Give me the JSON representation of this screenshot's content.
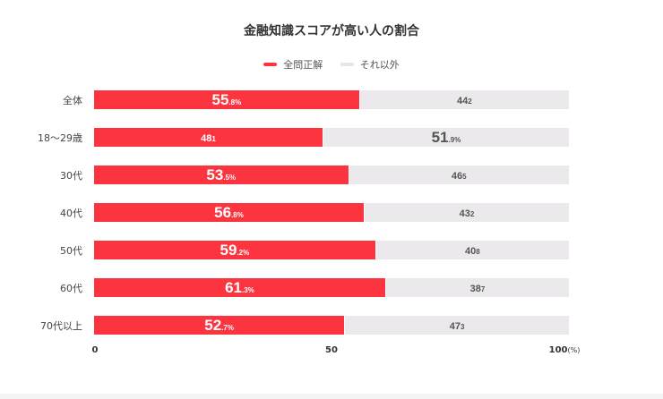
{
  "chart_data": {
    "type": "bar",
    "stacked": true,
    "orientation": "horizontal",
    "title": "金融知識スコアが高い人の割合",
    "legend": {
      "position": "top",
      "entries": [
        "全問正解",
        "それ以外"
      ]
    },
    "categories": [
      "全体",
      "18〜29歳",
      "30代",
      "40代",
      "50代",
      "60代",
      "70代以上"
    ],
    "series": [
      {
        "name": "全問正解",
        "color": "#fc3440",
        "values": [
          55.8,
          48.1,
          53.5,
          56.8,
          59.2,
          61.3,
          52.7
        ]
      },
      {
        "name": "それ以外",
        "color": "#ebe9eb",
        "values": [
          44.2,
          51.9,
          46.5,
          43.2,
          40.8,
          38.7,
          47.3
        ]
      }
    ],
    "xlim": [
      0,
      100
    ],
    "xticks": [
      "0",
      "50",
      "100"
    ],
    "xunit": "(%)",
    "grid": false
  }
}
